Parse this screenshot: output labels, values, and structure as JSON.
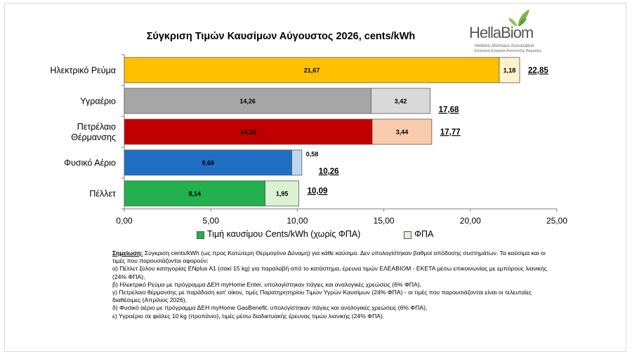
{
  "chart_data": {
    "type": "bar",
    "orientation": "horizontal",
    "stacked": true,
    "title": "Σύγκριση Τιμών Καυσίμων Αύγουστος 2026, cents/kWh",
    "categories": [
      "Ηλεκτρικό Ρεύμα",
      "Υγραέριο",
      "Πετρέλαιο Θέρμανσης",
      "Φυσικό Αέριο",
      "Πέλλετ"
    ],
    "category_lines": [
      [
        "Ηλεκτρικό Ρεύμα"
      ],
      [
        "Υγραέριο"
      ],
      [
        "Πετρέλαιο",
        "Θέρμανσης"
      ],
      [
        "Φυσικό Αέριο"
      ],
      [
        "Πέλλετ"
      ]
    ],
    "series": [
      {
        "name": "Τιμή καυσίμου Cents/kWh (χωρίς ΦΠΑ)",
        "values": [
          21.67,
          14.26,
          14.33,
          9.68,
          8.14
        ],
        "labels": [
          "21,67",
          "14,26",
          "14,33",
          "9,68",
          "8,14"
        ]
      },
      {
        "name": "ΦΠΑ",
        "values": [
          1.18,
          3.42,
          3.44,
          0.58,
          1.95
        ],
        "labels": [
          "1,18",
          "3,42",
          "3,44",
          "0,58",
          "1,95"
        ]
      }
    ],
    "totals": [
      "22,85",
      "17,68",
      "17,77",
      "10,26",
      "10,09"
    ],
    "base_colors": [
      "#ffc000",
      "#a6a6a6",
      "#c00000",
      "#1f6fc5",
      "#22b14c"
    ],
    "vat_colors": [
      "#fff2cc",
      "#d9d9d9",
      "#f8cbad",
      "#bdd7ee",
      "#d9f2d0"
    ],
    "legend_colors": [
      "#22b14c",
      "#e2efd9"
    ],
    "xlim": [
      0,
      25
    ],
    "xticks": [
      "0,00",
      "5,00",
      "10,00",
      "15,00",
      "20,00",
      "25,00"
    ],
    "grid": false,
    "legend_position": "bottom"
  },
  "logo": {
    "name": "HellaBiom",
    "line1": "Hellenic Biomass Association",
    "line2": "Ελληνική Εταιρεία Ανάπτυξης Βιομάζας"
  },
  "notes": {
    "label": "Σημείωση:",
    "intro": " Σύγκριση cents/kWh (ως προς Κατώτερη Θερμογόνο Δύναμη) για κάθε καύσιμο. Δεν υπολογίστηκαν βαθμοί απόδοσης συστημάτων. Τα καύσιμα και οι τιμές που παρουσιάζονται αφορούν:",
    "items": [
      "α) Πέλλετ ξύλου κατηγορίας ENplus A1 (σακί 15 kg) για παραλαβή από το κατάστημα, έρευνα τιμών ΕΛΕΑΒΙΟΜ - ΕΚΕΤΑ μέσω  επικοινωνίας με εμπόρους λιανικής (24% ΦΠΑ),",
      "β) Ηλεκτρικό Ρεύμα με πρόγραμμα ΔΕΗ myHome Enter, υπολογίστηκαν πάγιες και αναλογικές χρεώσεις (6% ΦΠΑ),",
      "γ) Πετρέλαιο θέρμανσης με παράδοση κατ' οίκον, τιμές Παρατηρητηρίου Τιμών Υγρών Καυσίμων (24% ΦΠΑ) - οι τιμές που παρουσιάζονται είναι οι τελευταίες διαθέσιμες (Απρίλιος 2026),",
      "δ) Φυσικό αέριο με πρόγραμμα ΔΕΗ myHome GasBenefit, υπολογίστηκαν πάγιες και αναλογικές χρεώσεις (6% ΦΠΑ),",
      "ε) Υγραέριο σε φιάλες 10 kg (προπάνιο), τιμές μέσω διαδικτυακής έρευνας τιμών λιανικής (24% ΦΠΑ)."
    ]
  }
}
